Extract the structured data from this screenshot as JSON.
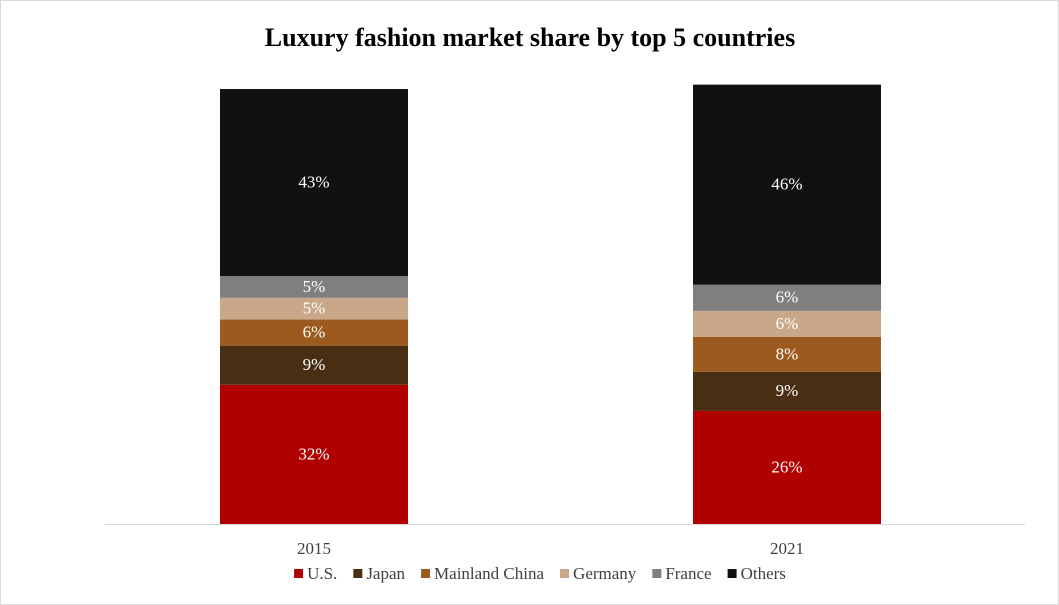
{
  "chart_data": {
    "type": "stacked_bar",
    "title": "Luxury fashion market share by top 5 countries",
    "categories": [
      "2015",
      "2021"
    ],
    "series": [
      {
        "name": "U.S.",
        "color": "#b00000",
        "values": [
          32,
          26
        ],
        "value_labels": [
          "32%",
          "26%"
        ]
      },
      {
        "name": "Japan",
        "color": "#4a2e14",
        "values": [
          9,
          9
        ],
        "value_labels": [
          "9%",
          "9%"
        ]
      },
      {
        "name": "Mainland China",
        "color": "#9c5a1e",
        "values": [
          6,
          8
        ],
        "value_labels": [
          "6%",
          "8%"
        ]
      },
      {
        "name": "Germany",
        "color": "#c8a888",
        "values": [
          5,
          6
        ],
        "value_labels": [
          "5%",
          "6%"
        ]
      },
      {
        "name": "France",
        "color": "#7f7f7f",
        "values": [
          5,
          6
        ],
        "value_labels": [
          "5%",
          "6%"
        ]
      },
      {
        "name": "Others",
        "color": "#111111",
        "values": [
          43,
          46
        ],
        "value_labels": [
          "43%",
          "46%"
        ]
      }
    ],
    "legend": "bottom"
  }
}
